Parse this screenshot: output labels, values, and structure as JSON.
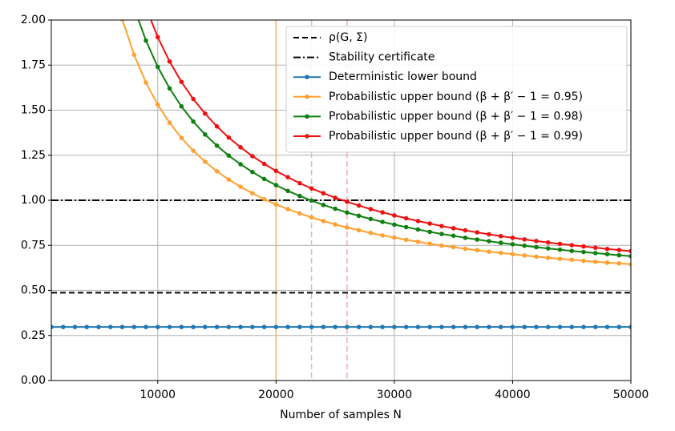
{
  "chart_data": {
    "type": "line",
    "xlabel": "Number of samples N",
    "xlim": [
      1000,
      50000
    ],
    "ylim": [
      0,
      2
    ],
    "xticks": [
      10000,
      20000,
      30000,
      40000,
      50000
    ],
    "yticks": [
      {
        "value": 0,
        "label": "0.00"
      },
      {
        "value": 0.25,
        "label": "0.25"
      },
      {
        "value": 0.5,
        "label": "0.50"
      },
      {
        "value": 0.75,
        "label": "0.75"
      },
      {
        "value": 1,
        "label": "1.00"
      },
      {
        "value": 1.25,
        "label": "1.25"
      },
      {
        "value": 1.5,
        "label": "1.50"
      },
      {
        "value": 1.75,
        "label": "1.75"
      },
      {
        "value": 2,
        "label": "2.00"
      }
    ],
    "grid": true,
    "legend": "upper right",
    "x": [
      1000,
      2000,
      3000,
      4000,
      5000,
      6000,
      7000,
      8000,
      9000,
      10000,
      11000,
      12000,
      13000,
      14000,
      15000,
      16000,
      17000,
      18000,
      19000,
      20000,
      21000,
      22000,
      23000,
      24000,
      25000,
      26000,
      27000,
      28000,
      29000,
      30000,
      31000,
      32000,
      33000,
      34000,
      35000,
      36000,
      37000,
      38000,
      39000,
      40000,
      41000,
      42000,
      43000,
      44000,
      45000,
      46000,
      47000,
      48000,
      49000,
      50000
    ],
    "hlines": [
      {
        "name": "ρ(G, Σ)",
        "value": 0.487,
        "color": "#000000",
        "dash": "dashed"
      },
      {
        "name": "Stability certificate",
        "value": 1,
        "color": "#000000",
        "dash": "dashdot"
      }
    ],
    "vlines": [
      {
        "x": 20000,
        "color": "#f0b070",
        "dash": "solid"
      },
      {
        "x": 23000,
        "color": "#a8d8a8",
        "dash": "dashed"
      },
      {
        "x": 26000,
        "color": "#f5a8a8",
        "dash": "dashed"
      }
    ],
    "series": [
      {
        "name": "Deterministic lower bound",
        "color": "#1f77b4",
        "values": [
          0.297,
          0.297,
          0.297,
          0.297,
          0.297,
          0.297,
          0.297,
          0.297,
          0.297,
          0.297,
          0.297,
          0.297,
          0.297,
          0.297,
          0.297,
          0.297,
          0.297,
          0.297,
          0.297,
          0.297,
          0.297,
          0.297,
          0.297,
          0.297,
          0.297,
          0.297,
          0.297,
          0.297,
          0.297,
          0.297,
          0.297,
          0.297,
          0.297,
          0.297,
          0.297,
          0.297,
          0.297,
          0.297,
          0.297,
          0.297,
          0.297,
          0.297,
          0.297,
          0.297,
          0.297,
          0.297,
          0.297,
          0.297,
          0.297,
          0.297
        ]
      },
      {
        "name": "Probabilistic upper bound (β + β′ − 1 =  0.95)",
        "color": "#ffa030",
        "values": [
          null,
          null,
          null,
          null,
          null,
          null,
          2.004,
          1.807,
          1.653,
          1.53,
          1.43,
          1.346,
          1.275,
          1.214,
          1.161,
          1.115,
          1.075,
          1.039,
          1.006,
          0.977,
          0.951,
          0.927,
          0.905,
          0.885,
          0.866,
          0.849,
          0.834,
          0.819,
          0.805,
          0.793,
          0.781,
          0.77,
          0.759,
          0.749,
          0.74,
          0.731,
          0.723,
          0.715,
          0.708,
          0.701,
          0.694,
          0.687,
          0.681,
          0.675,
          0.67,
          0.664,
          0.659,
          0.654,
          0.65,
          0.645
        ]
      },
      {
        "name": "Probabilistic upper bound (β + β′ − 1 =  0.98)",
        "color": "#108010",
        "values": [
          null,
          null,
          null,
          null,
          null,
          null,
          null,
          2.068,
          1.886,
          1.74,
          1.621,
          1.521,
          1.437,
          1.365,
          1.303,
          1.248,
          1.2,
          1.157,
          1.118,
          1.084,
          1.052,
          1.024,
          0.998,
          0.974,
          0.953,
          0.932,
          0.914,
          0.896,
          0.88,
          0.865,
          0.851,
          0.838,
          0.825,
          0.813,
          0.803,
          0.792,
          0.782,
          0.773,
          0.764,
          0.756,
          0.748,
          0.74,
          0.733,
          0.726,
          0.719,
          0.713,
          0.707,
          0.701,
          0.695,
          0.69
        ]
      },
      {
        "name": "Probabilistic upper bound (β + β′ − 1 =  0.99)",
        "color": "#ee1111",
        "values": [
          null,
          null,
          null,
          null,
          null,
          null,
          null,
          null,
          2.07,
          1.905,
          1.77,
          1.657,
          1.562,
          1.481,
          1.41,
          1.348,
          1.294,
          1.245,
          1.202,
          1.163,
          1.128,
          1.095,
          1.066,
          1.039,
          1.014,
          0.992,
          0.971,
          0.951,
          0.933,
          0.916,
          0.9,
          0.885,
          0.871,
          0.857,
          0.845,
          0.833,
          0.822,
          0.811,
          0.801,
          0.792,
          0.783,
          0.774,
          0.766,
          0.758,
          0.751,
          0.744,
          0.737,
          0.73,
          0.724,
          0.718
        ]
      }
    ]
  }
}
